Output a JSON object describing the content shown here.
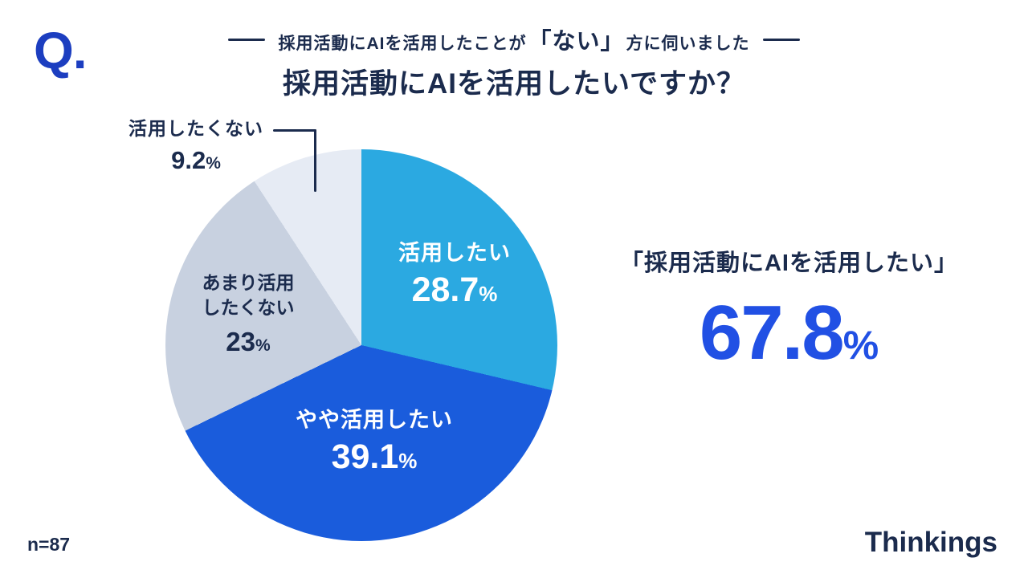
{
  "header": {
    "q_mark": "Q.",
    "subtitle_prefix": "採用活動にAIを活用したことが",
    "subtitle_emphasis": "「ない」",
    "subtitle_suffix": "方に伺いました",
    "title": "採用活動にAIを活用したいですか？"
  },
  "chart_data": {
    "type": "pie",
    "title": "採用活動にAIを活用したいですか？",
    "start_angle": "top-clockwise",
    "unit": "%",
    "sample_size": "n=87",
    "slices": [
      {
        "label": "活用したい",
        "value": 28.7,
        "display_value": "28.7",
        "color": "#2BA9E1",
        "label_placement": "inside",
        "text_color": "#FFFFFF"
      },
      {
        "label": "やや活用したい",
        "value": 39.1,
        "display_value": "39.1",
        "color": "#1A5CDC",
        "label_placement": "inside",
        "text_color": "#FFFFFF"
      },
      {
        "label": "あまり活用したくない",
        "label_lines": [
          "あまり活用",
          "したくない"
        ],
        "value": 23,
        "display_value": "23",
        "color": "#C8D1E0",
        "label_placement": "inside",
        "text_color": "#1B2B4D"
      },
      {
        "label": "活用したくない",
        "value": 9.2,
        "display_value": "9.2",
        "color": "#E6EBF4",
        "label_placement": "outside-callout",
        "text_color": "#1B2B4D"
      }
    ]
  },
  "highlight": {
    "caption": "「採用活動にAIを活用したい」",
    "value": "67.8",
    "unit": "%"
  },
  "footer": {
    "sample_size": "n=87",
    "logo": "Thinkings"
  },
  "colors": {
    "navy_text": "#1B2B4D",
    "q_mark_blue": "#1C3EC0",
    "highlight_blue": "#2150E4",
    "background": "#FFFFFF"
  }
}
